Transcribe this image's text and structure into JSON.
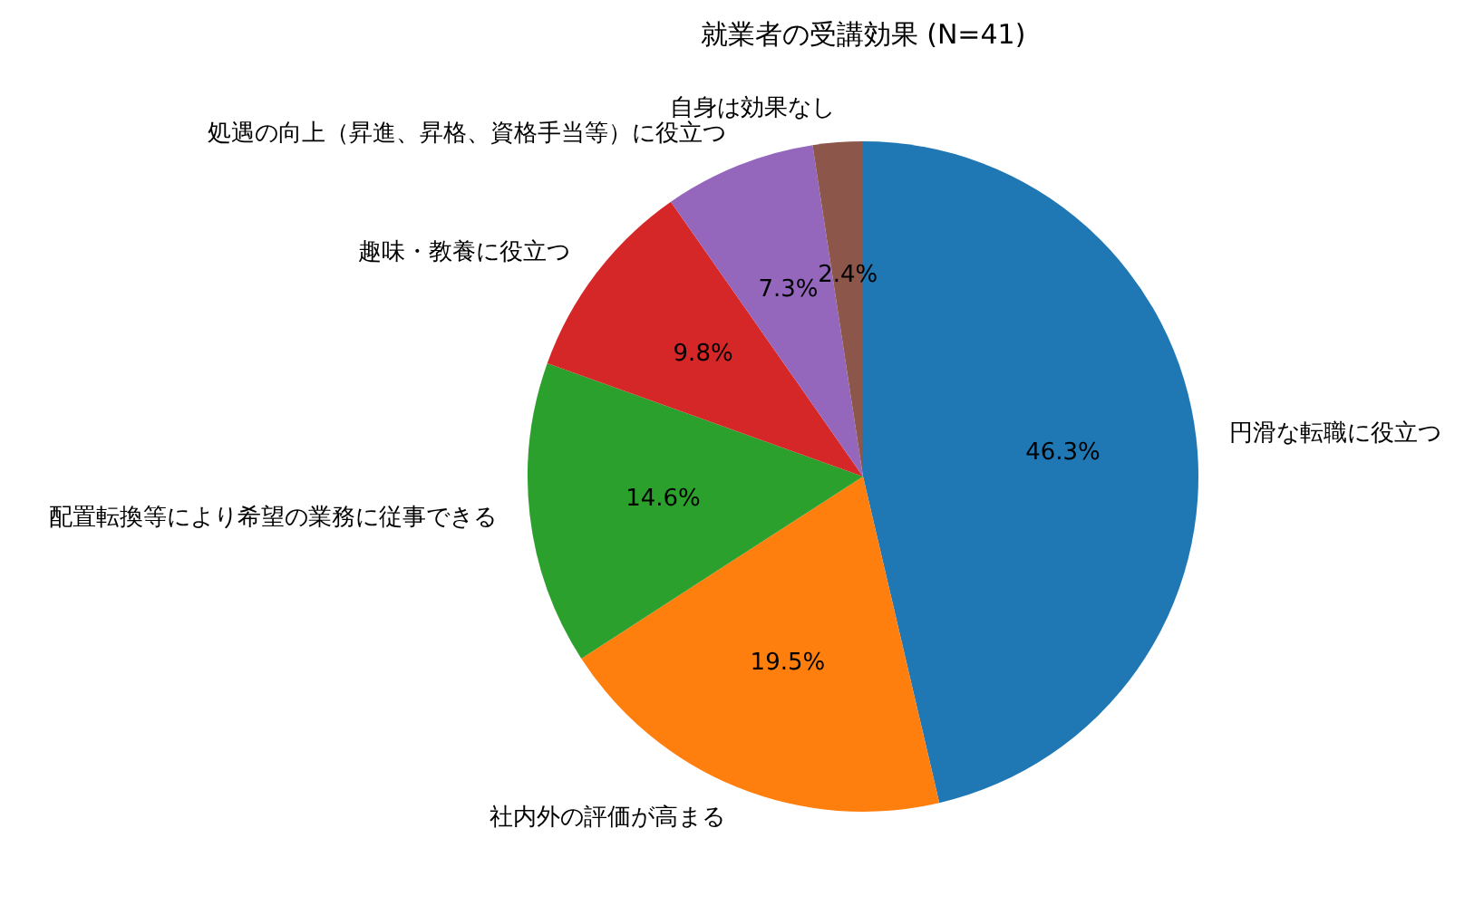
{
  "chart_data": {
    "type": "pie",
    "title": "就業者の受講効果 (N=41)",
    "categories": [
      "円滑な転職に役立つ",
      "社内外の評価が高まる",
      "配置転換等により希望の業務に従事できる",
      "趣味・教養に役立つ",
      "処遇の向上（昇進、昇格、資格手当等）に役立つ",
      "自身は効果なし"
    ],
    "values": [
      46.3,
      19.5,
      14.6,
      9.8,
      7.3,
      2.4
    ],
    "colors": [
      "#1f77b4",
      "#ff7f0e",
      "#2ca02c",
      "#d62728",
      "#9467bd",
      "#8c564b"
    ],
    "value_labels": [
      "46.3%",
      "19.5%",
      "14.6%",
      "9.8%",
      "7.3%",
      "2.4%"
    ],
    "legend": false
  }
}
